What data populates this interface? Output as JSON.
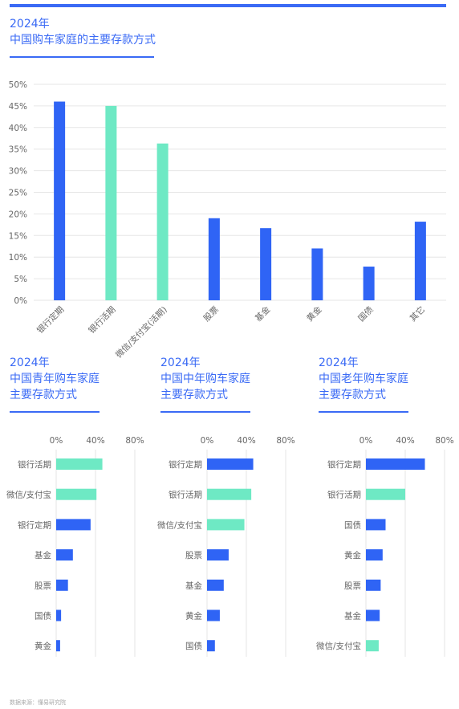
{
  "colors": {
    "accent": "#3a6af5",
    "bank": "#2f64f5",
    "wechat": "#6ee9c4",
    "grid": "#e6e6e6"
  },
  "main": {
    "year": "2024年",
    "subtitle": "中国购车家庭的主要存款方式"
  },
  "young": {
    "year": "2024年",
    "line1": "中国青年购车家庭",
    "line2": "主要存款方式"
  },
  "middle": {
    "year": "2024年",
    "line1": "中国中年购车家庭",
    "line2": "主要存款方式"
  },
  "old": {
    "year": "2024年",
    "line1": "中国老年购车家庭",
    "line2": "主要存款方式"
  },
  "footer": {
    "source": "数据来源：懂易研究院"
  },
  "chart_data": [
    {
      "type": "bar",
      "title": "2024年 中国购车家庭的主要存款方式",
      "categories": [
        "银行定期",
        "银行活期",
        "微信/支付宝(活期)",
        "股票",
        "基金",
        "黄金",
        "国债",
        "其它"
      ],
      "values": [
        46,
        45,
        36.3,
        19,
        16.7,
        12,
        7.8,
        18.2
      ],
      "bar_colors": [
        "#2f64f5",
        "#6ee9c4",
        "#6ee9c4",
        "#2f64f5",
        "#2f64f5",
        "#2f64f5",
        "#2f64f5",
        "#2f64f5"
      ],
      "y_ticks": [
        "0%",
        "5%",
        "10%",
        "15%",
        "20%",
        "25%",
        "30%",
        "35%",
        "40%",
        "45%",
        "50%"
      ],
      "ylim": [
        0,
        50
      ],
      "grid": true
    },
    {
      "type": "bar",
      "orientation": "horizontal",
      "title": "2024年 中国青年购车家庭 主要存款方式",
      "categories": [
        "银行活期",
        "微信/支付宝",
        "银行定期",
        "基金",
        "股票",
        "国债",
        "黄金"
      ],
      "values": [
        47,
        41,
        35,
        17,
        12,
        5,
        4
      ],
      "bar_colors": [
        "#6ee9c4",
        "#6ee9c4",
        "#2f64f5",
        "#2f64f5",
        "#2f64f5",
        "#2f64f5",
        "#2f64f5"
      ],
      "x_ticks": [
        "0%",
        "40%",
        "80%"
      ],
      "xlim": [
        0,
        80
      ]
    },
    {
      "type": "bar",
      "orientation": "horizontal",
      "title": "2024年 中国中年购车家庭 主要存款方式",
      "categories": [
        "银行定期",
        "银行活期",
        "微信/支付宝",
        "股票",
        "基金",
        "黄金",
        "国债"
      ],
      "values": [
        47,
        45,
        38,
        22,
        17,
        13,
        8
      ],
      "bar_colors": [
        "#2f64f5",
        "#6ee9c4",
        "#6ee9c4",
        "#2f64f5",
        "#2f64f5",
        "#2f64f5",
        "#2f64f5"
      ],
      "x_ticks": [
        "0%",
        "40%",
        "80%"
      ],
      "xlim": [
        0,
        80
      ]
    },
    {
      "type": "bar",
      "orientation": "horizontal",
      "title": "2024年 中国老年购车家庭 主要存款方式",
      "categories": [
        "银行定期",
        "银行活期",
        "国债",
        "黄金",
        "股票",
        "基金",
        "微信/支付宝"
      ],
      "values": [
        60,
        40,
        20,
        17,
        15,
        14,
        13
      ],
      "bar_colors": [
        "#2f64f5",
        "#6ee9c4",
        "#2f64f5",
        "#2f64f5",
        "#2f64f5",
        "#2f64f5",
        "#6ee9c4"
      ],
      "x_ticks": [
        "0%",
        "40%",
        "80%"
      ],
      "xlim": [
        0,
        80
      ]
    }
  ]
}
